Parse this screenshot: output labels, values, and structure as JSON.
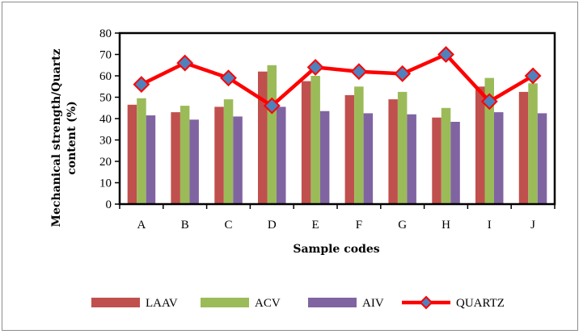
{
  "chart_data": {
    "type": "bar",
    "categories": [
      "A",
      "B",
      "C",
      "D",
      "E",
      "F",
      "G",
      "H",
      "I",
      "J"
    ],
    "series": [
      {
        "name": "LAAV",
        "type": "bar",
        "color": "#c0504d",
        "values": [
          46.5,
          43,
          45.5,
          62,
          57.5,
          51,
          49,
          40.5,
          55,
          52.5
        ]
      },
      {
        "name": "ACV",
        "type": "bar",
        "color": "#9bbb59",
        "values": [
          49.5,
          46,
          49,
          65,
          60,
          55,
          52.5,
          45,
          59,
          56.5
        ]
      },
      {
        "name": "AIV",
        "type": "bar",
        "color": "#8064a2",
        "values": [
          41.5,
          39.5,
          41,
          45.5,
          43.5,
          42.5,
          42,
          38.5,
          43,
          42.5
        ]
      },
      {
        "name": "QUARTZ",
        "type": "line",
        "color": "#ff0000",
        "marker_color": "#4f81bd",
        "values": [
          56,
          66,
          59,
          46,
          64,
          62,
          61,
          70,
          48,
          60
        ]
      }
    ],
    "xlabel": "Sample codes",
    "ylabel_lines": [
      "Mechanical strength/Quartz",
      "content (%)"
    ],
    "ylim": [
      0,
      80
    ],
    "yticks": [
      0,
      10,
      20,
      30,
      40,
      50,
      60,
      70,
      80
    ],
    "legend_position": "bottom",
    "grid": false
  }
}
